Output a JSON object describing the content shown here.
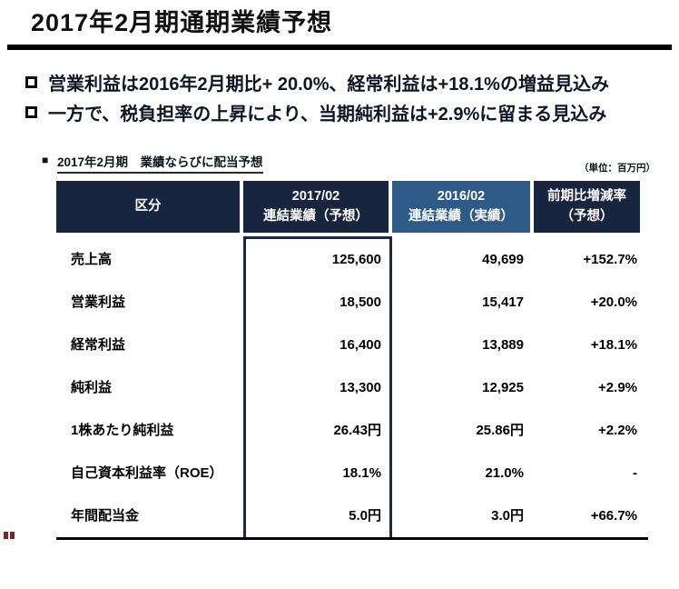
{
  "slide": {
    "title": "2017年2月期通期業績予想",
    "bullets": [
      "営業利益は2016年2月期比+ 20.0%、経常利益は+18.1%の増益見込み",
      "一方で、税負担率の上昇により、当期純利益は+2.9%に留まる見込み"
    ],
    "section_marker": "■",
    "section_label": "2017年2月期　業績ならびに配当予想",
    "unit_label": "（単位：百万円）",
    "colors": {
      "header_dark_navy": "#17263e",
      "header_light_blue": "#2e5a88",
      "highlight_box_border": "#1b2a42",
      "corner_mark_red": "#7f2424"
    }
  },
  "chart_data": {
    "type": "table",
    "title": "2017年2月期 業績ならびに配当予想",
    "unit": "百万円",
    "columns": [
      {
        "line1": "区分",
        "line2": ""
      },
      {
        "line1": "2017/02",
        "line2": "連結業績（予想）"
      },
      {
        "line1": "2016/02",
        "line2": "連結業績（実績）"
      },
      {
        "line1": "前期比増減率",
        "line2": "（予想）"
      }
    ],
    "rows": [
      {
        "label": "売上高",
        "forecast_2017": "125,600",
        "actual_2016": "49,699",
        "yoy_change": "+152.7%"
      },
      {
        "label": "営業利益",
        "forecast_2017": "18,500",
        "actual_2016": "15,417",
        "yoy_change": "+20.0%"
      },
      {
        "label": "経常利益",
        "forecast_2017": "16,400",
        "actual_2016": "13,889",
        "yoy_change": "+18.1%"
      },
      {
        "label": "純利益",
        "forecast_2017": "13,300",
        "actual_2016": "12,925",
        "yoy_change": "+2.9%"
      },
      {
        "label": "1株あたり純利益",
        "forecast_2017": "26.43円",
        "actual_2016": "25.86円",
        "yoy_change": "+2.2%"
      },
      {
        "label": "自己資本利益率（ROE）",
        "forecast_2017": "18.1%",
        "actual_2016": "21.0%",
        "yoy_change": "-"
      },
      {
        "label": "年間配当金",
        "forecast_2017": "5.0円",
        "actual_2016": "3.0円",
        "yoy_change": "+66.7%"
      }
    ]
  }
}
